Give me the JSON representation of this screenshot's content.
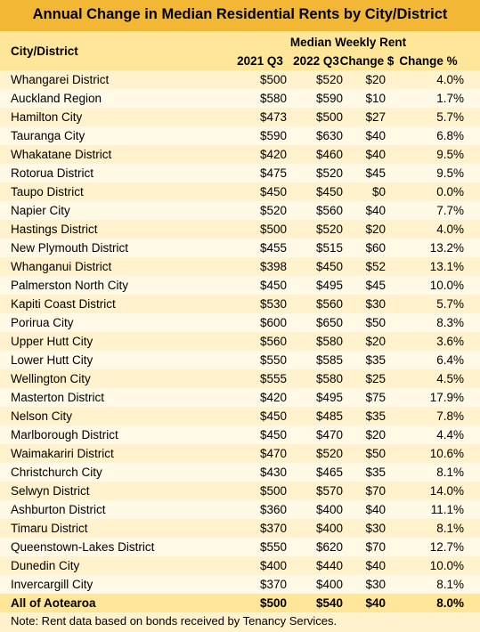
{
  "title": "Annual Change in Median Residential Rents by City/District",
  "header": {
    "first": "City/District",
    "group": "Median Weekly Rent",
    "columns": [
      "2021 Q3",
      "2022 Q3",
      "Change $",
      "Change %"
    ]
  },
  "table": {
    "rows": [
      [
        "Whangarei District",
        "$500",
        "$520",
        "$20",
        "4.0%"
      ],
      [
        "Auckland Region",
        "$580",
        "$590",
        "$10",
        "1.7%"
      ],
      [
        "Hamilton City",
        "$473",
        "$500",
        "$27",
        "5.7%"
      ],
      [
        "Tauranga City",
        "$590",
        "$630",
        "$40",
        "6.8%"
      ],
      [
        "Whakatane District",
        "$420",
        "$460",
        "$40",
        "9.5%"
      ],
      [
        "Rotorua District",
        "$475",
        "$520",
        "$45",
        "9.5%"
      ],
      [
        "Taupo District",
        "$450",
        "$450",
        "$0",
        "0.0%"
      ],
      [
        "Napier City",
        "$520",
        "$560",
        "$40",
        "7.7%"
      ],
      [
        "Hastings District",
        "$500",
        "$520",
        "$20",
        "4.0%"
      ],
      [
        "New Plymouth District",
        "$455",
        "$515",
        "$60",
        "13.2%"
      ],
      [
        "Whanganui District",
        "$398",
        "$450",
        "$52",
        "13.1%"
      ],
      [
        "Palmerston North City",
        "$450",
        "$495",
        "$45",
        "10.0%"
      ],
      [
        "Kapiti Coast District",
        "$530",
        "$560",
        "$30",
        "5.7%"
      ],
      [
        "Porirua City",
        "$600",
        "$650",
        "$50",
        "8.3%"
      ],
      [
        "Upper Hutt City",
        "$560",
        "$580",
        "$20",
        "3.6%"
      ],
      [
        "Lower Hutt City",
        "$550",
        "$585",
        "$35",
        "6.4%"
      ],
      [
        "Wellington City",
        "$555",
        "$580",
        "$25",
        "4.5%"
      ],
      [
        "Masterton District",
        "$420",
        "$495",
        "$75",
        "17.9%"
      ],
      [
        "Nelson City",
        "$450",
        "$485",
        "$35",
        "7.8%"
      ],
      [
        "Marlborough District",
        "$450",
        "$470",
        "$20",
        "4.4%"
      ],
      [
        "Waimakariri District",
        "$470",
        "$520",
        "$50",
        "10.6%"
      ],
      [
        "Christchurch City",
        "$430",
        "$465",
        "$35",
        "8.1%"
      ],
      [
        "Selwyn District",
        "$500",
        "$570",
        "$70",
        "14.0%"
      ],
      [
        "Ashburton District",
        "$360",
        "$400",
        "$40",
        "11.1%"
      ],
      [
        "Timaru District",
        "$370",
        "$400",
        "$30",
        "8.1%"
      ],
      [
        "Queenstown-Lakes District",
        "$550",
        "$620",
        "$70",
        "12.7%"
      ],
      [
        "Dunedin City",
        "$400",
        "$440",
        "$40",
        "10.0%"
      ],
      [
        "Invercargill City",
        "$370",
        "$400",
        "$30",
        "8.1%"
      ]
    ],
    "total": [
      "All of Aotearoa",
      "$500",
      "$540",
      "$40",
      "8.0%"
    ]
  },
  "note": "Note: Rent data based on bonds received by Tenancy Services."
}
